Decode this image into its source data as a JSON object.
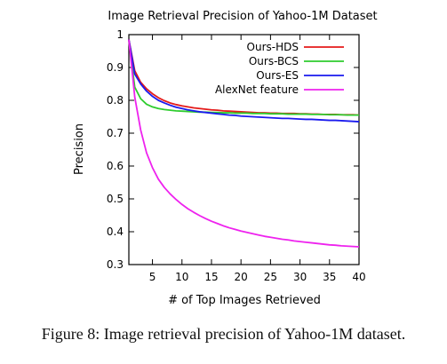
{
  "chart_data": {
    "type": "line",
    "title": "Image Retrieval Precision of Yahoo-1M Dataset",
    "xlabel": "# of Top Images Retrieved",
    "ylabel": "Precision",
    "xlim": [
      1,
      40
    ],
    "ylim": [
      0.3,
      1
    ],
    "xticks": [
      5,
      10,
      15,
      20,
      25,
      30,
      35,
      40
    ],
    "yticks": [
      0.3,
      0.4,
      0.5,
      0.6,
      0.7,
      0.8,
      0.9,
      1
    ],
    "ytick_labels": [
      "0.3",
      "0.4",
      "0.5",
      "0.6",
      "0.7",
      "0.8",
      "0.9",
      "1"
    ],
    "grid": false,
    "legend_position": "top-right",
    "x": [
      1,
      2,
      3,
      4,
      5,
      6,
      7,
      8,
      9,
      10,
      11,
      12,
      13,
      14,
      15,
      16,
      17,
      18,
      19,
      20,
      21,
      22,
      23,
      24,
      25,
      26,
      27,
      28,
      29,
      30,
      31,
      32,
      33,
      34,
      35,
      36,
      37,
      38,
      39,
      40
    ],
    "series": [
      {
        "name": "Ours-HDS",
        "color": "#e41a1a",
        "values": [
          0.985,
          0.89,
          0.855,
          0.835,
          0.82,
          0.808,
          0.799,
          0.792,
          0.787,
          0.783,
          0.78,
          0.777,
          0.775,
          0.773,
          0.771,
          0.77,
          0.768,
          0.767,
          0.766,
          0.765,
          0.764,
          0.763,
          0.762,
          0.762,
          0.761,
          0.761,
          0.76,
          0.76,
          0.76,
          0.759,
          0.759,
          0.758,
          0.758,
          0.757,
          0.757,
          0.757,
          0.756,
          0.756,
          0.756,
          0.755
        ]
      },
      {
        "name": "Ours-BCS",
        "color": "#2ecc2e",
        "values": [
          0.985,
          0.84,
          0.805,
          0.788,
          0.78,
          0.775,
          0.772,
          0.77,
          0.768,
          0.767,
          0.766,
          0.765,
          0.764,
          0.764,
          0.763,
          0.763,
          0.762,
          0.762,
          0.761,
          0.761,
          0.761,
          0.76,
          0.76,
          0.76,
          0.759,
          0.759,
          0.759,
          0.758,
          0.758,
          0.758,
          0.758,
          0.757,
          0.757,
          0.757,
          0.756,
          0.756,
          0.756,
          0.755,
          0.755,
          0.755
        ]
      },
      {
        "name": "Ours-ES",
        "color": "#1a1aee",
        "values": [
          0.985,
          0.88,
          0.85,
          0.828,
          0.812,
          0.8,
          0.792,
          0.785,
          0.779,
          0.775,
          0.771,
          0.768,
          0.765,
          0.763,
          0.761,
          0.759,
          0.757,
          0.755,
          0.754,
          0.752,
          0.751,
          0.75,
          0.749,
          0.748,
          0.747,
          0.746,
          0.745,
          0.745,
          0.744,
          0.743,
          0.742,
          0.742,
          0.741,
          0.74,
          0.739,
          0.739,
          0.738,
          0.737,
          0.736,
          0.735
        ]
      },
      {
        "name": "AlexNet feature",
        "color": "#ee22ee",
        "values": [
          0.985,
          0.81,
          0.71,
          0.64,
          0.595,
          0.56,
          0.535,
          0.515,
          0.498,
          0.483,
          0.47,
          0.459,
          0.449,
          0.44,
          0.432,
          0.425,
          0.418,
          0.412,
          0.407,
          0.402,
          0.398,
          0.394,
          0.39,
          0.386,
          0.383,
          0.38,
          0.377,
          0.375,
          0.372,
          0.37,
          0.368,
          0.366,
          0.364,
          0.362,
          0.36,
          0.359,
          0.357,
          0.356,
          0.355,
          0.354
        ]
      }
    ]
  },
  "caption": "Figure 8: Image retrieval precision of Yahoo-1M dataset."
}
